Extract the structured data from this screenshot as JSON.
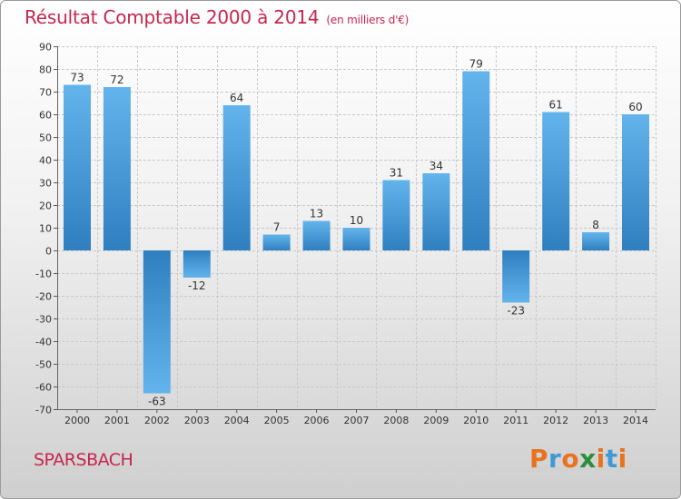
{
  "header": {
    "title": "Résultat Comptable 2000 à 2014",
    "subtitle": "(en milliers d'€)"
  },
  "footer": {
    "commune": "SPARSBACH",
    "brand": "Proxiti",
    "brand_colors": [
      "#e8731f",
      "#3f9ad6",
      "#e8731f",
      "#2e8c3c",
      "#e8731f",
      "#3f9ad6",
      "#e8731f"
    ]
  },
  "colors": {
    "bar_light": "#63b4ec",
    "bar_dark": "#2f7fc0",
    "grid": "#c8c8c8",
    "axis_text": "#333333"
  },
  "chart_data": {
    "type": "bar",
    "title": "Résultat Comptable 2000 à 2014",
    "xlabel": "",
    "ylabel": "",
    "ylim": [
      -70,
      90
    ],
    "ytick_step": 10,
    "grid": true,
    "categories": [
      "2000",
      "2001",
      "2002",
      "2003",
      "2004",
      "2005",
      "2006",
      "2007",
      "2008",
      "2009",
      "2010",
      "2011",
      "2012",
      "2013",
      "2014"
    ],
    "values": [
      73,
      72,
      -63,
      -12,
      64,
      7,
      13,
      10,
      31,
      34,
      79,
      -23,
      61,
      8,
      60
    ],
    "labels": [
      "73",
      "72",
      "-63",
      "-12",
      "64",
      "7",
      "13",
      "10",
      "31",
      "34",
      "79",
      "-23",
      "61",
      "8",
      "60"
    ]
  }
}
